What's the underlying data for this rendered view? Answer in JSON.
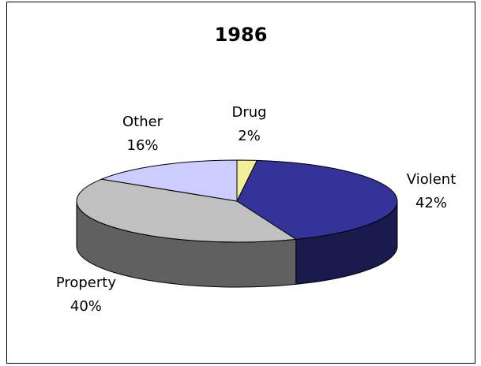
{
  "chart_data": {
    "type": "pie",
    "title": "1986",
    "categories": [
      "Drug",
      "Violent",
      "Property",
      "Other"
    ],
    "values": [
      2,
      42,
      40,
      16
    ],
    "value_labels": [
      "2%",
      "42%",
      "40%",
      "16%"
    ],
    "colors": [
      "#f2ee9a",
      "#333399",
      "#c0c0c0",
      "#ccccff"
    ]
  }
}
